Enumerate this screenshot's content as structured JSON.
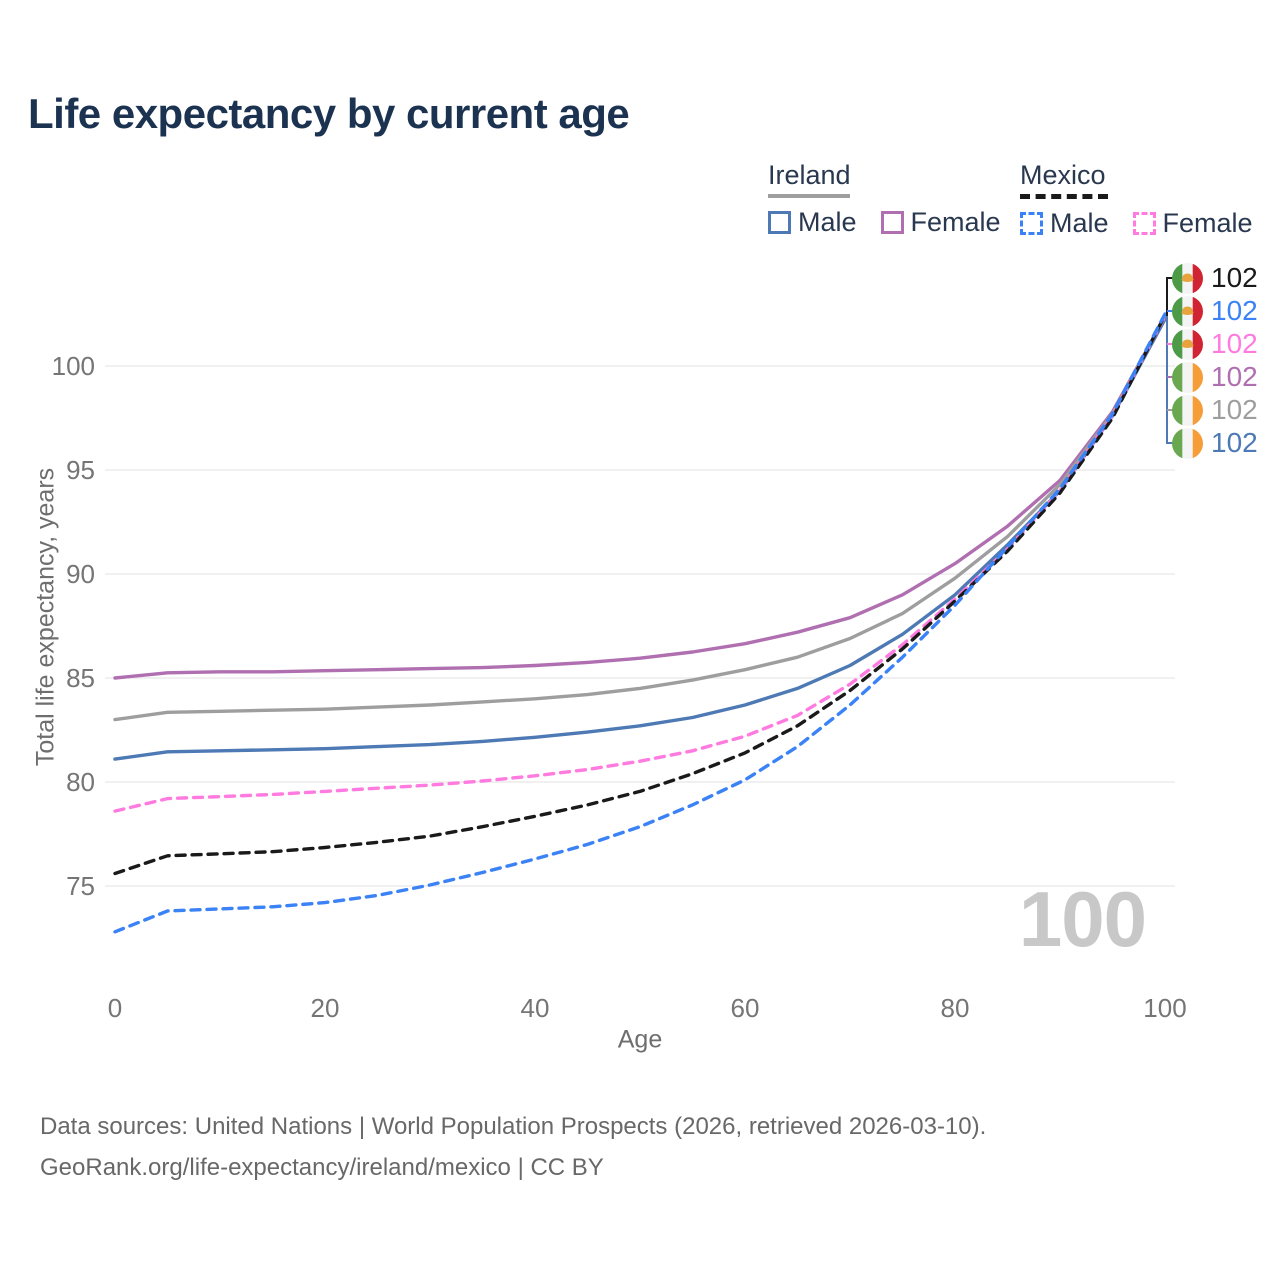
{
  "header": {
    "title": "Life expectancy by current age"
  },
  "legend": {
    "groups": [
      {
        "label": "Ireland",
        "line_style": "solid",
        "line_color": "#9e9e9e",
        "items": [
          {
            "label": "Male",
            "color": "#4d79b5",
            "line_style": "solid"
          },
          {
            "label": "Female",
            "color": "#b06fb0",
            "line_style": "solid"
          }
        ]
      },
      {
        "label": "Mexico",
        "line_style": "dashed",
        "line_color": "#1a1a1a",
        "items": [
          {
            "label": "Male",
            "color": "#3b82f6",
            "line_style": "dashed"
          },
          {
            "label": "Female",
            "color": "#ff7be0",
            "line_style": "dashed"
          }
        ]
      }
    ]
  },
  "colors": {
    "title": "#1b3350",
    "legend_text": "#29384f",
    "axis_text": "#757575",
    "axis_title_text": "#6e6e6e",
    "grid": "#ececec",
    "watermark": "#c8c8c8",
    "footer_text": "#686868",
    "ireland_male": "#4d79b5",
    "ireland_female": "#b06fb0",
    "ireland_both": "#9e9e9e",
    "mexico_male": "#3b82f6",
    "mexico_female": "#ff7be0",
    "mexico_both": "#1a1a1a"
  },
  "flags": {
    "mexico": {
      "stripes": [
        "#4e9b47",
        "#f4f4f4",
        "#d02433"
      ],
      "emblem": "#e8a33d"
    },
    "ireland": {
      "stripes": [
        "#6aa84f",
        "#f4f4f4",
        "#f59d38"
      ],
      "emblem": null
    }
  },
  "chart_data": {
    "type": "line",
    "title": "Life expectancy by current age",
    "xlabel": "Age",
    "ylabel": "Total life expectancy, years",
    "xlim": [
      0,
      100
    ],
    "ylim": [
      72,
      103
    ],
    "xticks": [
      0,
      20,
      40,
      60,
      80,
      100
    ],
    "yticks": [
      75,
      80,
      85,
      90,
      95,
      100
    ],
    "grid": true,
    "legend_position": "top-right",
    "x": [
      0,
      5,
      10,
      15,
      20,
      25,
      30,
      35,
      40,
      45,
      50,
      55,
      60,
      65,
      70,
      75,
      80,
      85,
      90,
      95,
      100
    ],
    "series": [
      {
        "name": "Ireland Female",
        "country": "Ireland",
        "sex": "female",
        "color": "#b06fb0",
        "line_style": "solid",
        "values": [
          85.0,
          85.25,
          85.3,
          85.3,
          85.35,
          85.4,
          85.45,
          85.5,
          85.6,
          85.75,
          85.95,
          86.25,
          86.65,
          87.2,
          87.9,
          89.0,
          90.5,
          92.3,
          94.5,
          97.8,
          102.35
        ]
      },
      {
        "name": "Ireland Both sexes",
        "country": "Ireland",
        "sex": "both",
        "color": "#9e9e9e",
        "line_style": "solid",
        "values": [
          83.0,
          83.35,
          83.4,
          83.45,
          83.5,
          83.6,
          83.7,
          83.85,
          84.0,
          84.2,
          84.5,
          84.9,
          85.4,
          86.0,
          86.9,
          88.1,
          89.8,
          91.8,
          94.3,
          97.7,
          102.3
        ]
      },
      {
        "name": "Ireland Male",
        "country": "Ireland",
        "sex": "male",
        "color": "#4d79b5",
        "line_style": "solid",
        "values": [
          81.1,
          81.45,
          81.5,
          81.55,
          81.6,
          81.7,
          81.8,
          81.95,
          82.15,
          82.4,
          82.7,
          83.1,
          83.7,
          84.5,
          85.6,
          87.1,
          89.0,
          91.4,
          94.0,
          97.6,
          102.25
        ]
      },
      {
        "name": "Mexico Female",
        "country": "Mexico",
        "sex": "female",
        "color": "#ff7be0",
        "line_style": "dashed",
        "values": [
          78.6,
          79.2,
          79.3,
          79.4,
          79.55,
          79.7,
          79.85,
          80.05,
          80.3,
          80.6,
          81.0,
          81.5,
          82.2,
          83.2,
          84.7,
          86.6,
          88.8,
          91.2,
          94.0,
          97.6,
          102.4
        ]
      },
      {
        "name": "Mexico Both sexes",
        "country": "Mexico",
        "sex": "both",
        "color": "#1a1a1a",
        "line_style": "dashed",
        "values": [
          75.6,
          76.45,
          76.55,
          76.65,
          76.85,
          77.1,
          77.4,
          77.85,
          78.35,
          78.9,
          79.55,
          80.4,
          81.4,
          82.7,
          84.4,
          86.4,
          88.7,
          91.1,
          93.9,
          97.5,
          102.45
        ]
      },
      {
        "name": "Mexico Male",
        "country": "Mexico",
        "sex": "male",
        "color": "#3b82f6",
        "line_style": "dashed",
        "values": [
          72.8,
          73.8,
          73.9,
          74.0,
          74.2,
          74.55,
          75.05,
          75.65,
          76.3,
          77.0,
          77.85,
          78.9,
          80.1,
          81.7,
          83.7,
          86.0,
          88.5,
          91.3,
          94.1,
          97.7,
          102.5
        ]
      }
    ]
  },
  "end_labels": [
    {
      "flag": "mexico",
      "value": "102",
      "color": "#1a1a1a"
    },
    {
      "flag": "mexico",
      "value": "102",
      "color": "#3b82f6"
    },
    {
      "flag": "mexico",
      "value": "102",
      "color": "#ff7be0"
    },
    {
      "flag": "ireland",
      "value": "102",
      "color": "#b06fb0"
    },
    {
      "flag": "ireland",
      "value": "102",
      "color": "#9e9e9e"
    },
    {
      "flag": "ireland",
      "value": "102",
      "color": "#4d79b5"
    }
  ],
  "watermark": "100",
  "footer": {
    "line1": "Data sources: United Nations | World Population Prospects (2026, retrieved 2026-03-10).",
    "line2": "GeoRank.org/life-expectancy/ireland/mexico | CC BY"
  }
}
